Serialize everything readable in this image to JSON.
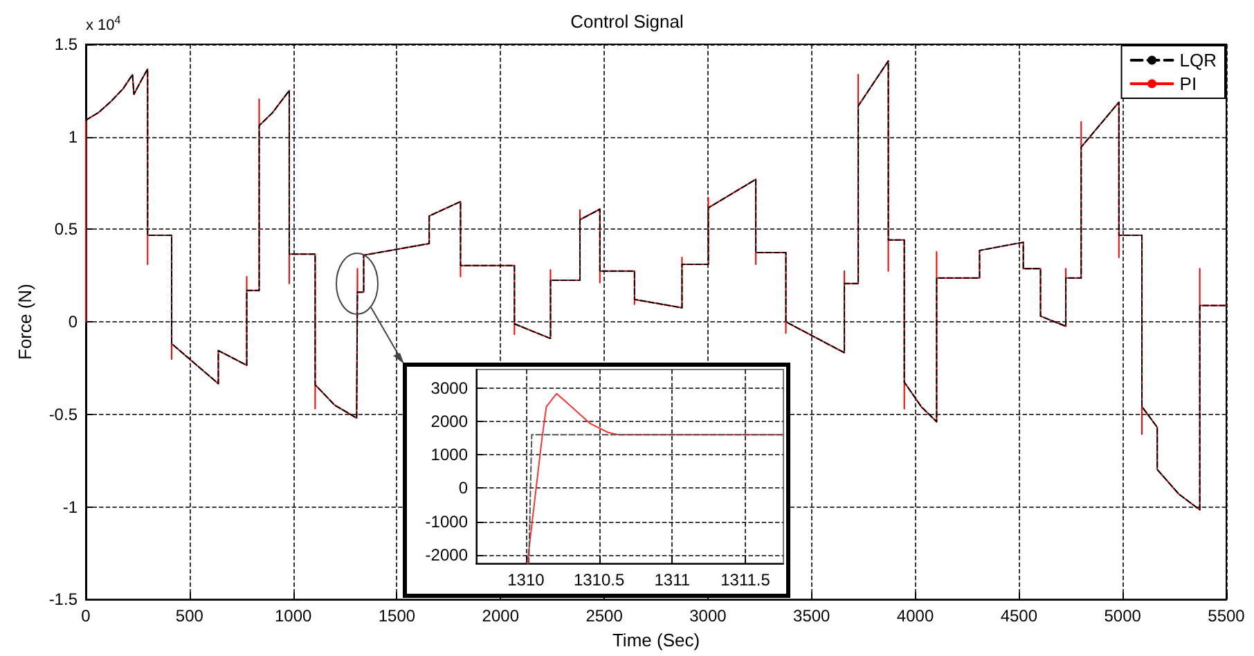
{
  "chart_data": [
    {
      "type": "line",
      "title": "Control Signal",
      "xlabel": "Time (Sec)",
      "ylabel": "Force (N)",
      "annotations": [
        "x 10$^{4}$"
      ],
      "xlim": [
        0,
        5500
      ],
      "xticks": [
        0,
        500,
        1000,
        1500,
        2000,
        2500,
        3000,
        3500,
        4000,
        4500,
        5000,
        5500
      ],
      "ylim": [
        -1.5,
        1.5
      ],
      "yticks": [
        -1.5,
        -1,
        -0.5,
        0,
        0.5,
        1,
        1.5
      ],
      "grid": true,
      "legend": "top right",
      "marker": "none",
      "series": [
        {
          "name": "LQR",
          "color": "#000000",
          "line_style": "dashed",
          "x": [
            0,
            60,
            120,
            180,
            225,
            232,
            265,
            298,
            298,
            414,
            414,
            639,
            639,
            776,
            776,
            836,
            836,
            900,
            981,
            981,
            1106,
            1106,
            1200,
            1306,
            1310,
            1340,
            1340,
            1656,
            1656,
            1807,
            1807,
            2067,
            2067,
            2241,
            2241,
            2383,
            2383,
            2479,
            2479,
            2646,
            2646,
            2875,
            2875,
            3002,
            3002,
            3231,
            3231,
            3376,
            3376,
            3658,
            3658,
            3725,
            3725,
            3870,
            3870,
            3947,
            3947,
            4030,
            4103,
            4103,
            4310,
            4310,
            4521,
            4521,
            4604,
            4604,
            4726,
            4726,
            4800,
            4800,
            4982,
            4982,
            5093,
            5093,
            5167,
            5167,
            5270,
            5372,
            5372,
            5500
          ],
          "values": [
            1.09,
            1.13,
            1.19,
            1.26,
            1.336,
            1.23,
            1.3,
            1.366,
            0.468,
            0.468,
            -0.118,
            -0.334,
            -0.155,
            -0.235,
            0.17,
            0.17,
            1.06,
            1.13,
            1.25,
            0.366,
            0.366,
            -0.34,
            -0.45,
            -0.52,
            0.16,
            0.16,
            0.36,
            0.423,
            0.572,
            0.65,
            0.304,
            0.304,
            -0.011,
            -0.09,
            0.225,
            0.225,
            0.552,
            0.609,
            0.274,
            0.274,
            0.121,
            0.076,
            0.311,
            0.311,
            0.616,
            0.77,
            0.374,
            0.374,
            0,
            -0.167,
            0.207,
            0.207,
            1.167,
            1.41,
            0.443,
            0.443,
            -0.326,
            -0.46,
            -0.54,
            0.237,
            0.237,
            0.386,
            0.43,
            0.287,
            0.287,
            0.031,
            -0.024,
            0.237,
            0.237,
            0.944,
            1.187,
            0.468,
            0.468,
            -0.458,
            -0.57,
            -0.798,
            -0.93,
            -1.016,
            0.088,
            0.088
          ]
        },
        {
          "name": "PI",
          "color": "#ff0000",
          "line_style": "solid",
          "x": [
            0,
            0,
            60,
            120,
            180,
            225,
            232,
            265,
            298,
            298,
            298,
            414,
            414,
            414,
            639,
            639,
            776,
            776,
            776,
            836,
            836,
            836,
            900,
            981,
            981,
            981,
            1106,
            1106,
            1106,
            1200,
            1306,
            1310,
            1310,
            1340,
            1340,
            1656,
            1656,
            1807,
            1807,
            1807,
            2067,
            2067,
            2067,
            2241,
            2241,
            2241,
            2383,
            2383,
            2383,
            2479,
            2479,
            2479,
            2646,
            2646,
            2646,
            2875,
            2875,
            2875,
            3002,
            3002,
            3002,
            3231,
            3231,
            3231,
            3376,
            3376,
            3376,
            3658,
            3658,
            3658,
            3725,
            3725,
            3725,
            3870,
            3870,
            3870,
            3947,
            3947,
            3947,
            4030,
            4103,
            4103,
            4103,
            4310,
            4310,
            4521,
            4521,
            4604,
            4604,
            4726,
            4726,
            4726,
            4800,
            4800,
            4800,
            4982,
            4982,
            4982,
            5093,
            5093,
            5093,
            5167,
            5167,
            5270,
            5372,
            5372,
            5372,
            5500
          ],
          "values": [
            0,
            1.09,
            1.13,
            1.19,
            1.26,
            1.336,
            1.23,
            1.3,
            1.366,
            0.311,
            0.468,
            0.468,
            -0.202,
            -0.118,
            -0.334,
            -0.155,
            -0.235,
            0.244,
            0.17,
            0.17,
            1.204,
            1.06,
            1.13,
            1.25,
            0.207,
            0.366,
            0.366,
            -0.47,
            -0.34,
            -0.45,
            -0.52,
            0.287,
            0.16,
            0.16,
            0.36,
            0.423,
            0.572,
            0.65,
            0.244,
            0.304,
            0.304,
            -0.068,
            -0.011,
            -0.09,
            0.281,
            0.225,
            0.225,
            0.604,
            0.552,
            0.609,
            0.212,
            0.274,
            0.274,
            0.095,
            0.121,
            0.076,
            0.348,
            0.311,
            0.311,
            0.671,
            0.616,
            0.77,
            0.311,
            0.374,
            0.374,
            -0.061,
            0,
            -0.167,
            0.274,
            0.207,
            0.207,
            1.336,
            1.167,
            1.41,
            0.274,
            0.443,
            0.443,
            -0.47,
            -0.326,
            -0.46,
            -0.54,
            0.378,
            0.237,
            0.237,
            0.386,
            0.43,
            0.287,
            0.287,
            0.031,
            -0.024,
            0.287,
            0.237,
            0.237,
            1.081,
            0.944,
            1.187,
            0.348,
            0.468,
            0.468,
            -0.607,
            -0.458,
            -0.57,
            -0.798,
            -0.93,
            -1.016,
            0.287,
            0.088,
            0.088
          ]
        }
      ]
    },
    {
      "type": "line",
      "grid": true,
      "legend": false,
      "marker": "none",
      "xlim": [
        1309.66,
        1311.76
      ],
      "xticks": [
        1310,
        1310.5,
        1311,
        1311.5
      ],
      "ylim": [
        -2250,
        3550
      ],
      "yticks": [
        -2000,
        -1000,
        0,
        1000,
        2000,
        3000
      ],
      "series": [
        {
          "color": "#555555",
          "line_style": "dashed",
          "x": [
            1310.02,
            1310.04,
            1311.76
          ],
          "values": [
            -2250,
            1600,
            1600
          ]
        },
        {
          "color": "#ff3333",
          "line_style": "solid",
          "x": [
            1310.01,
            1310.07,
            1310.11,
            1310.14,
            1310.21,
            1310.31,
            1310.44,
            1310.56,
            1310.63,
            1311.76
          ],
          "values": [
            -2250,
            0,
            1480,
            2440,
            2830,
            2440,
            1930,
            1670,
            1600,
            1600
          ]
        }
      ]
    }
  ]
}
